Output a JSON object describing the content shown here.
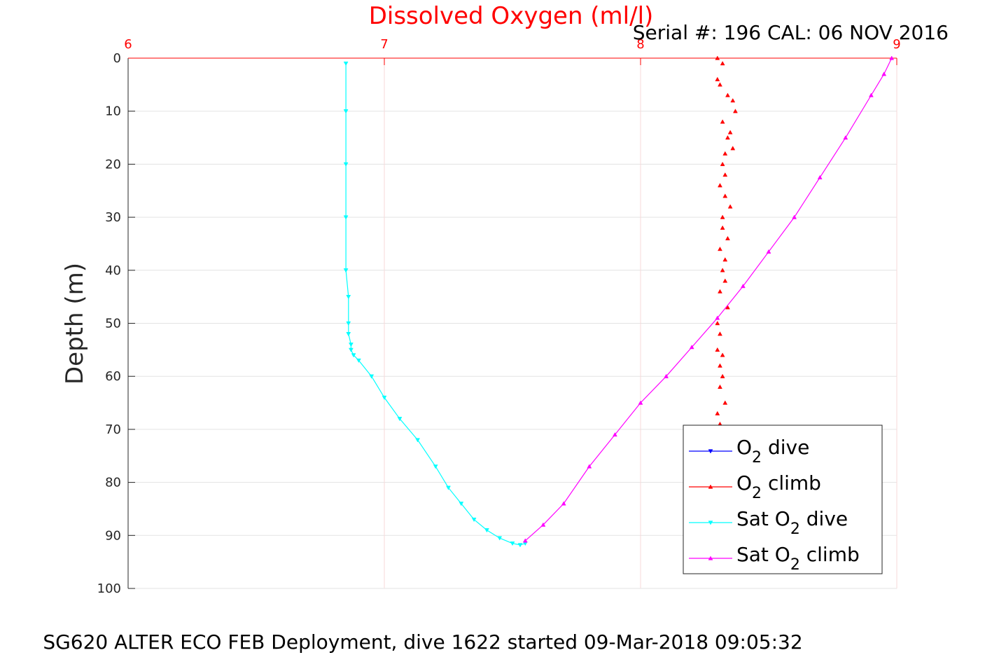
{
  "chart_data": {
    "type": "scatter",
    "title": "Dissolved Oxygen (ml/l)",
    "subtitle": "Serial #: 196  CAL: 06 NOV 2016",
    "ylabel": "Depth (m)",
    "xlim": [
      6,
      9
    ],
    "ylim": [
      0,
      100
    ],
    "y_reversed": true,
    "x_axis_position": "top",
    "grid": true,
    "xticks": [
      "6",
      "7",
      "8",
      "9"
    ],
    "yticks": [
      "0",
      "10",
      "20",
      "30",
      "40",
      "50",
      "60",
      "70",
      "80",
      "90",
      "100"
    ],
    "legend_position": "bottom-right",
    "colors": {
      "title": "#ff0000",
      "x_axis": "#ff0000",
      "o2_dive": "#0000ff",
      "o2_climb": "#ff0000",
      "sat_o2_dive": "#00ffff",
      "sat_o2_climb": "#ff00ff"
    },
    "series": [
      {
        "name_parts": [
          "O",
          "2",
          " dive"
        ],
        "key": "o2_dive",
        "marker": "triangle-down",
        "x": [],
        "y": []
      },
      {
        "name_parts": [
          "O",
          "2",
          " climb"
        ],
        "key": "o2_climb",
        "marker": "triangle-up",
        "line": false,
        "x": [
          8.3,
          8.32,
          8.3,
          8.31,
          8.34,
          8.36,
          8.37,
          8.32,
          8.35,
          8.34,
          8.36,
          8.33,
          8.32,
          8.33,
          8.31,
          8.33,
          8.35,
          8.32,
          8.32,
          8.34,
          8.31,
          8.33,
          8.32,
          8.33,
          8.31,
          8.34,
          8.3,
          8.31,
          8.3,
          8.32,
          8.31,
          8.32,
          8.31,
          8.33,
          8.3,
          8.31,
          8.3
        ],
        "y": [
          0,
          1,
          4,
          5,
          7,
          8,
          10,
          12,
          14,
          15,
          17,
          18,
          20,
          22,
          24,
          26,
          28,
          30,
          32,
          34,
          36,
          38,
          40,
          42,
          44,
          47,
          50,
          52,
          55,
          56,
          58,
          60,
          62,
          65,
          67,
          69,
          70
        ]
      },
      {
        "name_parts": [
          "Sat O",
          "2",
          " dive"
        ],
        "key": "sat_o2_dive",
        "marker": "triangle-down",
        "line": true,
        "x": [
          6.85,
          6.85,
          6.85,
          6.85,
          6.85,
          6.86,
          6.86,
          6.86,
          6.87,
          6.87,
          6.88,
          6.9,
          6.95,
          7.0,
          7.06,
          7.13,
          7.2,
          7.25,
          7.3,
          7.35,
          7.4,
          7.45,
          7.5,
          7.53,
          7.55
        ],
        "y": [
          1,
          10,
          20,
          30,
          40,
          45,
          50,
          52,
          54,
          55,
          56,
          57,
          60,
          64,
          68,
          72,
          77,
          81,
          84,
          87,
          89,
          90.5,
          91.5,
          91.8,
          91.5
        ]
      },
      {
        "name_parts": [
          "Sat O",
          "2",
          " climb"
        ],
        "key": "sat_o2_climb",
        "marker": "triangle-up",
        "line": true,
        "x": [
          7.55,
          7.62,
          7.7,
          7.8,
          7.9,
          8.0,
          8.1,
          8.2,
          8.3,
          8.4,
          8.5,
          8.6,
          8.7,
          8.8,
          8.9,
          8.95,
          8.98
        ],
        "y": [
          91,
          88,
          84,
          77,
          71,
          65,
          60,
          54.5,
          49,
          43,
          36.5,
          30,
          22.5,
          15,
          7,
          3,
          0
        ]
      }
    ],
    "footer": "SG620 ALTER ECO FEB Deployment, dive 1622 started 09-Mar-2018 09:05:32"
  }
}
